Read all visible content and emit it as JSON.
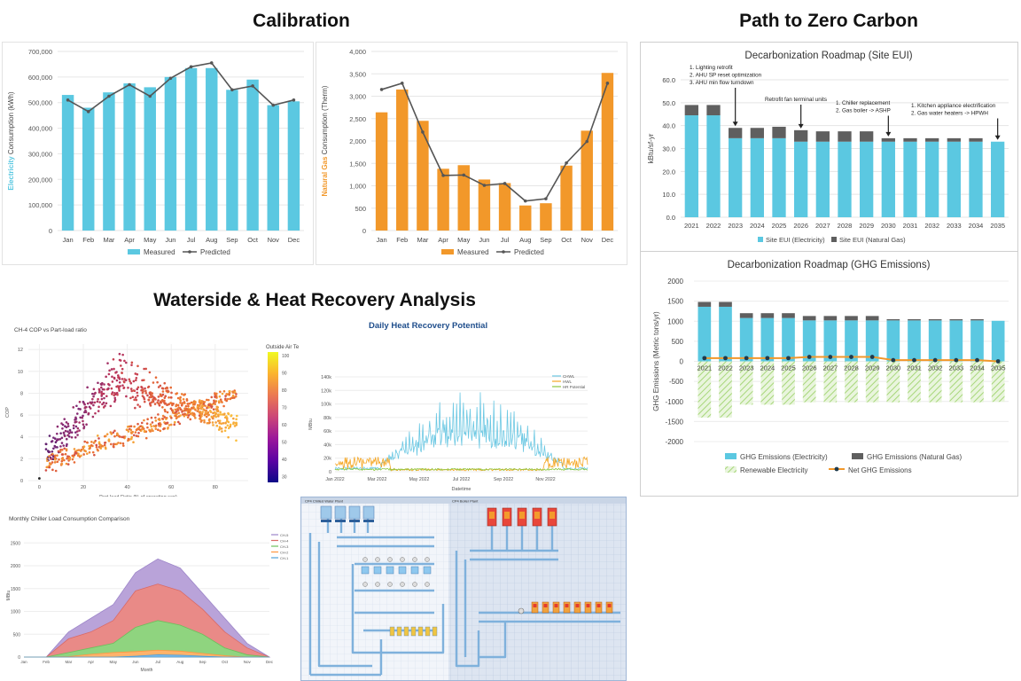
{
  "titles": {
    "calibration": "Calibration",
    "path": "Path to Zero Carbon",
    "waterside": "Waterside & Heat Recovery Analysis"
  },
  "colors": {
    "elec": "#5bc8e1",
    "gas": "#f2982a",
    "pred": "#555555",
    "dark": "#5f5f5f",
    "renew": "#a7d77a",
    "net": "#f2982a",
    "chwl": "#6cc8e3",
    "hwl": "#f5a623",
    "hr": "#8cc63f"
  },
  "chart_data": [
    {
      "id": "elec",
      "type": "bar",
      "title": "",
      "ylabel_prefix": "Electricity",
      "ylabel_suffix": " Consumption (kWh)",
      "categories": [
        "Jan",
        "Feb",
        "Mar",
        "Apr",
        "May",
        "Jun",
        "Jul",
        "Aug",
        "Sep",
        "Oct",
        "Nov",
        "Dec"
      ],
      "ylim": [
        0,
        700000
      ],
      "yticks": [
        "0",
        "100,000",
        "200,000",
        "300,000",
        "400,000",
        "500,000",
        "600,000",
        "700,000"
      ],
      "series": [
        {
          "name": "Measured",
          "values": [
            530000,
            480000,
            540000,
            575000,
            560000,
            600000,
            635000,
            635000,
            550000,
            590000,
            490000,
            505000
          ]
        },
        {
          "name": "Predicted",
          "values": [
            510000,
            465000,
            525000,
            570000,
            525000,
            595000,
            640000,
            655000,
            550000,
            565000,
            490000,
            510000
          ]
        }
      ],
      "legend": [
        "Measured",
        "Predicted"
      ]
    },
    {
      "id": "gas",
      "type": "bar",
      "ylabel_prefix": "Natural Gas",
      "ylabel_suffix": " Consumption (Therm)",
      "categories": [
        "Jan",
        "Feb",
        "Mar",
        "Apr",
        "May",
        "Jun",
        "Jul",
        "Aug",
        "Sep",
        "Oct",
        "Nov",
        "Dec"
      ],
      "ylim": [
        0,
        4000
      ],
      "yticks": [
        "0",
        "500",
        "1,000",
        "1,500",
        "2,000",
        "2,500",
        "3,000",
        "3,500",
        "4,000"
      ],
      "series": [
        {
          "name": "Measured",
          "values": [
            2640,
            3150,
            2450,
            1380,
            1460,
            1140,
            1060,
            560,
            610,
            1450,
            2230,
            3520
          ]
        },
        {
          "name": "Predicted",
          "values": [
            3150,
            3290,
            2200,
            1230,
            1240,
            1010,
            1050,
            660,
            710,
            1510,
            1990,
            3290
          ]
        }
      ],
      "legend": [
        "Measured",
        "Predicted"
      ]
    },
    {
      "id": "eui",
      "type": "bar",
      "title": "Decarbonization Roadmap (Site EUI)",
      "ylabel": "kBtu/sf-yr",
      "categories": [
        "2021",
        "2022",
        "2023",
        "2024",
        "2025",
        "2026",
        "2027",
        "2028",
        "2029",
        "2030",
        "2031",
        "2032",
        "2033",
        "2034",
        "2035"
      ],
      "ylim": [
        0,
        60
      ],
      "yticks": [
        "0.0",
        "10.0",
        "20.0",
        "30.0",
        "40.0",
        "50.0",
        "60.0"
      ],
      "series": [
        {
          "name": "Site EUI (Electricity)",
          "values": [
            44.5,
            44.5,
            34.5,
            34.5,
            34.5,
            33,
            33,
            33,
            33,
            33,
            33,
            33,
            33,
            33,
            33
          ]
        },
        {
          "name": "Site EUI (Natural Gas)",
          "values": [
            4.5,
            4.5,
            4.5,
            4.5,
            5,
            5,
            4.5,
            4.5,
            4.5,
            1.5,
            1.5,
            1.5,
            1.5,
            1.5,
            0
          ]
        }
      ],
      "annotations": [
        {
          "year": "2023",
          "lines": [
            "1.  Lighting retrofit",
            "2.  AHU SP reset optimization",
            "3.  AHU min flow turndown"
          ]
        },
        {
          "year": "2026",
          "lines": [
            "Retrofit fan terminal units"
          ]
        },
        {
          "year": "2030",
          "lines": [
            "1.  Chiller replacement",
            "2.  Gas boiler -> ASHP"
          ]
        },
        {
          "year": "2035",
          "lines": [
            "1.  Kitchen appliance electrification",
            "2.  Gas water heaters -> HPWH"
          ]
        }
      ],
      "legend": [
        "Site EUI (Electricity)",
        "Site EUI (Natural Gas)"
      ]
    },
    {
      "id": "ghg",
      "type": "bar",
      "title": "Decarbonization Roadmap (GHG Emissions)",
      "ylabel": "GHG Emissions (Metric tons/yr)",
      "categories": [
        "2021",
        "2022",
        "2023",
        "2024",
        "2025",
        "2026",
        "2027",
        "2028",
        "2029",
        "2030",
        "2031",
        "2032",
        "2033",
        "2034",
        "2035"
      ],
      "ylim": [
        -2000,
        2000
      ],
      "yticks": [
        "-2000",
        "-1500",
        "-1000",
        "-500",
        "0",
        "500",
        "1000",
        "1500",
        "2000"
      ],
      "series": [
        {
          "name": "GHG Emissions (Electricity)",
          "values": [
            1360,
            1360,
            1080,
            1080,
            1080,
            1020,
            1020,
            1020,
            1020,
            1020,
            1020,
            1020,
            1020,
            1020,
            1010
          ]
        },
        {
          "name": "GHG Emissions (Natural Gas)",
          "values": [
            120,
            120,
            120,
            120,
            120,
            110,
            110,
            110,
            110,
            30,
            30,
            30,
            30,
            30,
            0
          ]
        },
        {
          "name": "Renewable Electricity",
          "values": [
            -1400,
            -1400,
            -1080,
            -1080,
            -1080,
            -1020,
            -1020,
            -1020,
            -1020,
            -1020,
            -1020,
            -1020,
            -1020,
            -1020,
            -1010
          ]
        },
        {
          "name": "Net GHG Emissions",
          "values": [
            80,
            80,
            80,
            80,
            80,
            110,
            110,
            110,
            110,
            30,
            30,
            30,
            30,
            30,
            0
          ]
        }
      ],
      "legend": [
        "GHG Emissions (Electricity)",
        "GHG Emissions (Natural Gas)",
        "Renewable Electricity",
        "Net GHG Emissions"
      ]
    },
    {
      "id": "cop",
      "type": "scatter",
      "title": "CH-4 COP vs Part-load ratio",
      "xlabel": "Part-load Ratio (% of operating cap)",
      "ylabel": "COP",
      "xlim": [
        -5,
        95
      ],
      "ylim": [
        0,
        12.5
      ],
      "xticks": [
        0,
        20,
        40,
        60,
        80
      ],
      "yticks": [
        0,
        2,
        4,
        6,
        8,
        10,
        12
      ],
      "colorbar_title": "Outside Air Temp",
      "colorbar_ticks": [
        100,
        90,
        80,
        70,
        60,
        50,
        40,
        30
      ]
    },
    {
      "id": "hr",
      "type": "line",
      "title": "Daily Heat Recovery Potential",
      "xlabel": "Datetime",
      "ylabel": "MBtu",
      "xticks": [
        "Jan 2022",
        "Mar 2022",
        "May 2022",
        "Jul 2022",
        "Sep 2022",
        "Nov 2022"
      ],
      "yticks": [
        "0",
        "20k",
        "40k",
        "60k",
        "80k",
        "100k",
        "120k",
        "140k"
      ],
      "ylim": [
        0,
        140000
      ],
      "legend": [
        "CHWL",
        "HWL",
        "HR Potential"
      ]
    },
    {
      "id": "chiller",
      "type": "area",
      "title": "Monthly Chiller Load Consumption Comparison",
      "xlabel": "Month",
      "ylabel": "MBtu",
      "categories": [
        "Jan",
        "Feb",
        "Mar",
        "Apr",
        "May",
        "Jun",
        "Jul",
        "Aug",
        "Sep",
        "Oct",
        "Nov",
        "Dec"
      ],
      "ylim": [
        0,
        2700
      ],
      "yticks": [
        0,
        500,
        1000,
        1500,
        2000,
        2500
      ],
      "series": [
        {
          "name": "CH-1",
          "values": [
            0,
            0,
            0,
            0,
            0,
            20,
            50,
            40,
            20,
            0,
            0,
            0
          ]
        },
        {
          "name": "CH-2",
          "values": [
            0,
            0,
            10,
            60,
            100,
            120,
            150,
            130,
            80,
            30,
            0,
            0
          ]
        },
        {
          "name": "CH-3",
          "values": [
            0,
            0,
            100,
            200,
            300,
            650,
            800,
            700,
            500,
            200,
            50,
            0
          ]
        },
        {
          "name": "CH-4",
          "values": [
            0,
            0,
            400,
            550,
            800,
            1450,
            1600,
            1450,
            1050,
            550,
            200,
            0
          ]
        },
        {
          "name": "CH-5",
          "values": [
            0,
            0,
            550,
            850,
            1150,
            1850,
            2150,
            1950,
            1400,
            850,
            300,
            0
          ]
        }
      ],
      "legend": [
        "CH-5",
        "CH-4",
        "CH-3",
        "CH-2",
        "CH-1"
      ]
    }
  ],
  "schematic": {
    "left_label": "CP4 Chilled Water Plant",
    "right_label": "CP4 Boiler Plant"
  }
}
